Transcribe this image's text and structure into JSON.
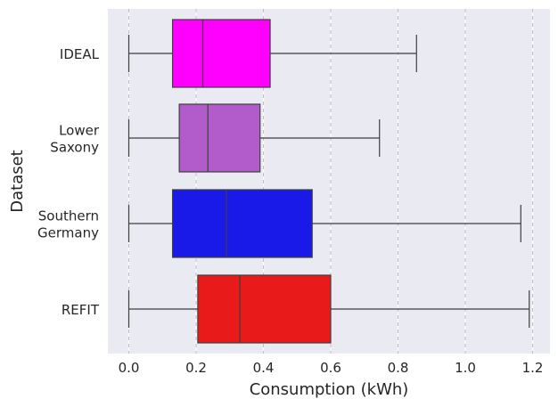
{
  "chart_data": {
    "type": "boxplot",
    "orientation": "horizontal",
    "title": "",
    "xlabel": "Consumption (kWh)",
    "ylabel": "Dataset",
    "xlim": [
      -0.06,
      1.23
    ],
    "xticks": [
      "0.0",
      "0.2",
      "0.4",
      "0.6",
      "0.8",
      "1.0",
      "1.2"
    ],
    "xtick_values": [
      0.0,
      0.2,
      0.4,
      0.6,
      0.8,
      1.0,
      1.2
    ],
    "grid": true,
    "categories": [
      {
        "label_lines": [
          "IDEAL"
        ],
        "color": "#ff00ff",
        "whisker_low": 0.0,
        "q1": 0.13,
        "median": 0.22,
        "q3": 0.42,
        "whisker_high": 0.855
      },
      {
        "label_lines": [
          "Lower",
          "Saxony"
        ],
        "color": "#b25ccc",
        "whisker_low": 0.0,
        "q1": 0.15,
        "median": 0.235,
        "q3": 0.39,
        "whisker_high": 0.745
      },
      {
        "label_lines": [
          "Southern",
          "Germany"
        ],
        "color": "#1a1ae8",
        "whisker_low": 0.0,
        "q1": 0.13,
        "median": 0.29,
        "q3": 0.545,
        "whisker_high": 1.165
      },
      {
        "label_lines": [
          "REFIT"
        ],
        "color": "#e81a1a",
        "whisker_low": 0.0,
        "q1": 0.205,
        "median": 0.33,
        "q3": 0.6,
        "whisker_high": 1.19
      }
    ],
    "colors": {
      "background": "#eaeaf2",
      "grid": "#ffffff",
      "grid_dashed": "#b0b0b8",
      "line": "#3f3f3f"
    }
  }
}
